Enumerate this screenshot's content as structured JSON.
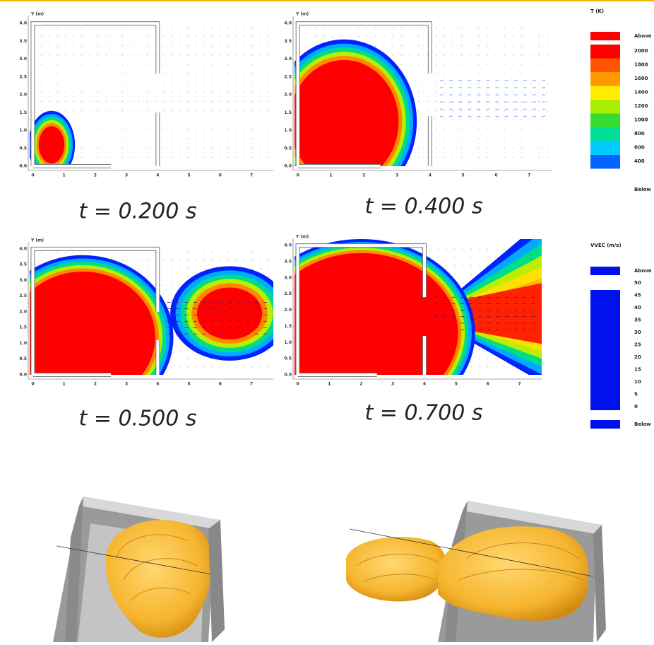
{
  "panels": [
    {
      "time": "t = 0.200 s",
      "y_label": "Y (m)",
      "xticks": [
        "0",
        "1",
        "2",
        "3",
        "4",
        "5",
        "6",
        "7"
      ],
      "yticks": [
        "4.0",
        "3.5",
        "3.0",
        "2.5",
        "2.0",
        "1.5",
        "1.0",
        "0.5",
        "0.0"
      ]
    },
    {
      "time": "t = 0.400 s",
      "y_label": "Y (m)",
      "xticks": [
        "0",
        "1",
        "2",
        "3",
        "4",
        "5",
        "6",
        "7"
      ],
      "yticks": [
        "4.0",
        "3.5",
        "3.0",
        "2.5",
        "2.0",
        "1.5",
        "1.0",
        "0.5",
        "0.0"
      ]
    },
    {
      "time": "t = 0.500 s",
      "y_label": "Y (m)",
      "xticks": [
        "0",
        "1",
        "2",
        "3",
        "4",
        "5",
        "6",
        "7"
      ],
      "yticks": [
        "4.0",
        "3.5",
        "3.0",
        "2.5",
        "2.0",
        "1.5",
        "1.0",
        "0.5",
        "0.0"
      ]
    },
    {
      "time": "t = 0.700 s",
      "y_label": "Y (m)",
      "xticks": [
        "0",
        "1",
        "2",
        "3",
        "4",
        "5",
        "6",
        "7"
      ],
      "yticks": [
        "4.0",
        "3.5",
        "3.0",
        "2.5",
        "2.0",
        "1.5",
        "1.0",
        "0.5",
        "0.0"
      ]
    }
  ],
  "temperature_legend": {
    "title": "T (K)",
    "labels": [
      "Above",
      "2000",
      "1800",
      "1600",
      "1400",
      "1200",
      "1000",
      "800",
      "600",
      "400",
      "Below"
    ]
  },
  "velocity_legend": {
    "title": "VVEC (m/s)",
    "labels": [
      "Above",
      "50",
      "45",
      "40",
      "35",
      "30",
      "25",
      "20",
      "15",
      "10",
      "5",
      "0",
      "Below"
    ]
  }
}
